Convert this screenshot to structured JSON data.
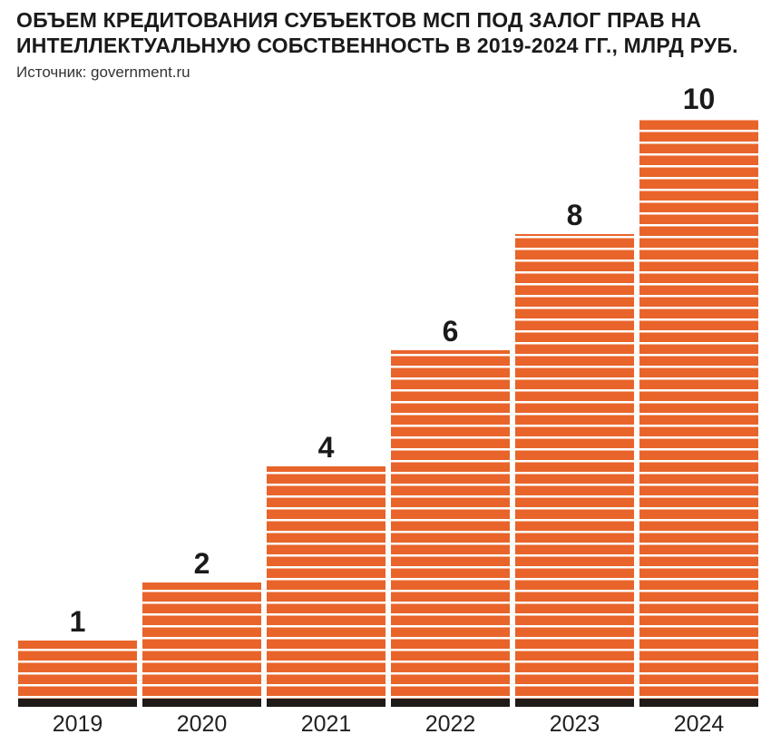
{
  "title": "ОБЪЕМ КРЕДИТОВАНИЯ СУБЪЕКТОВ МСП ПОД ЗАЛОГ ПРАВ НА ИНТЕЛЛЕКТУАЛЬНУЮ СОБСТВЕННОСТЬ В 2019-2024 ГГ., МЛРД РУБ.",
  "source": "Источник: government.ru",
  "colors": {
    "bar": "#e8642a",
    "stripe": "#ffffff",
    "baseline": "#1e1a18"
  },
  "chart_data": {
    "type": "bar",
    "title": "ОБЪЕМ КРЕДИТОВАНИЯ СУБЪЕКТОВ МСП ПОД ЗАЛОГ ПРАВ НА ИНТЕЛЛЕКТУАЛЬНУЮ СОБСТВЕННОСТЬ В 2019-2024 ГГ., МЛРД РУБ.",
    "categories": [
      "2019",
      "2020",
      "2021",
      "2022",
      "2023",
      "2024"
    ],
    "values": [
      1,
      2,
      4,
      6,
      8,
      10
    ],
    "data_labels": [
      "1",
      "2",
      "4",
      "6",
      "8",
      "10"
    ],
    "xlabel": "",
    "ylabel": "",
    "ylim": [
      0,
      10
    ],
    "grid": false,
    "legend": "none"
  }
}
